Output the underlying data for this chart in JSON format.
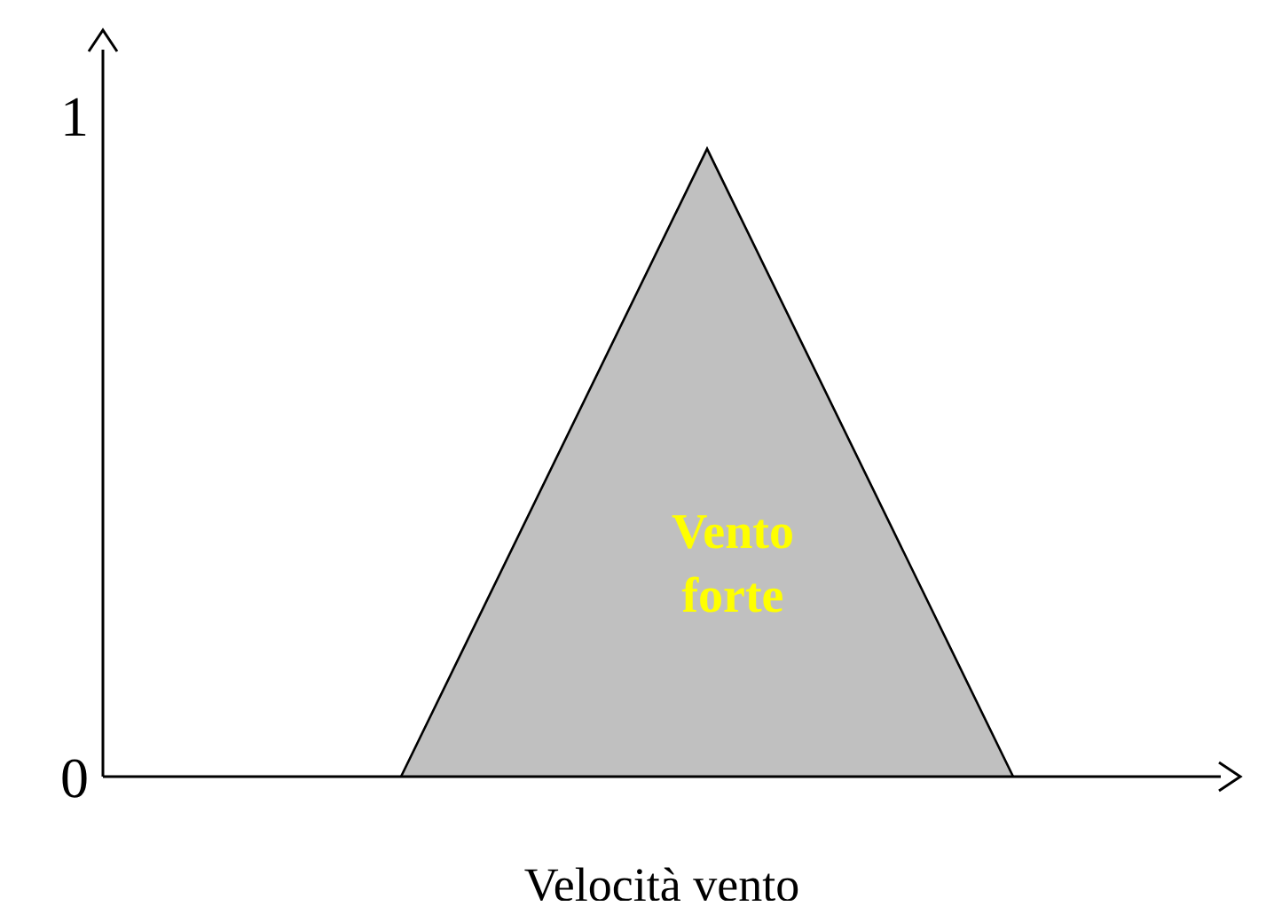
{
  "chart_data": {
    "type": "area",
    "categories": [
      null,
      null,
      null
    ],
    "series": [
      {
        "color": "#c0c0c0",
        "values": [
          0,
          0.95,
          0
        ]
      }
    ],
    "ylim": [
      0,
      1.1
    ],
    "yticks": [
      0,
      1
    ],
    "tick_labels": "y",
    "xlabel": "Velocità vento",
    "annotations": [
      "Vento forte"
    ]
  }
}
